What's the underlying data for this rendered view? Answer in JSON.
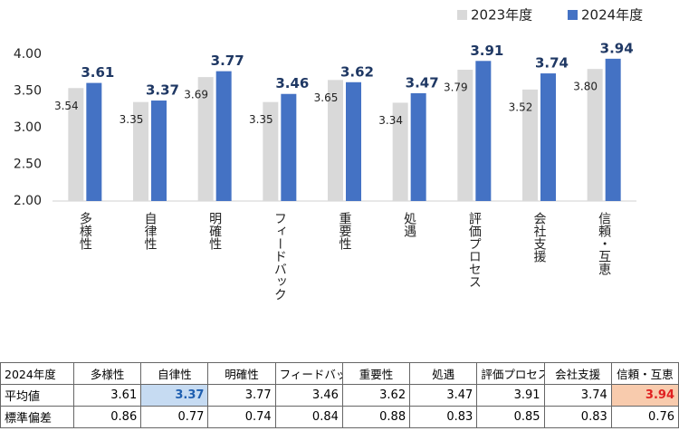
{
  "chart_data": {
    "type": "bar",
    "categories": [
      "多様性",
      "自律性",
      "明確性",
      "フィードバック",
      "重要性",
      "処遇",
      "評価プロセス",
      "会社支援",
      "信頼・互恵"
    ],
    "series": [
      {
        "name": "2023年度",
        "color": "#d9d9d9",
        "values": [
          3.54,
          3.35,
          3.69,
          3.35,
          3.65,
          3.34,
          3.79,
          3.52,
          3.8
        ],
        "value_labels": [
          "3.54",
          "3.35",
          "3.69",
          "3.35",
          "3.65",
          "3.34",
          "3.79",
          "3.52",
          "3.80"
        ]
      },
      {
        "name": "2024年度",
        "color": "#4472c4",
        "values": [
          3.61,
          3.37,
          3.77,
          3.46,
          3.62,
          3.47,
          3.91,
          3.74,
          3.94
        ],
        "value_labels": [
          "3.61",
          "3.37",
          "3.77",
          "3.46",
          "3.62",
          "3.47",
          "3.91",
          "3.74",
          "3.94"
        ]
      }
    ],
    "ylim": [
      2,
      4
    ],
    "yticks": [
      {
        "value": 2,
        "label": "2.00"
      },
      {
        "value": 2.5,
        "label": "2.50"
      },
      {
        "value": 3,
        "label": "3.00"
      },
      {
        "value": 3.5,
        "label": "3.50"
      },
      {
        "value": 4,
        "label": "4.00"
      }
    ],
    "grid": false
  },
  "table": {
    "rows": [
      [
        "2024年度",
        "多様性",
        "自律性",
        "明確性",
        "フィードバック",
        "重要性",
        "処遇",
        "評価プロセス",
        "会社支援",
        "信頼・互恵"
      ],
      [
        "平均値",
        "3.61",
        "3.37",
        "3.77",
        "3.46",
        "3.62",
        "3.47",
        "3.91",
        "3.74",
        "3.94"
      ],
      [
        "標準偏差",
        "0.86",
        "0.77",
        "0.74",
        "0.84",
        "0.88",
        "0.83",
        "0.85",
        "0.83",
        "0.76"
      ]
    ]
  }
}
